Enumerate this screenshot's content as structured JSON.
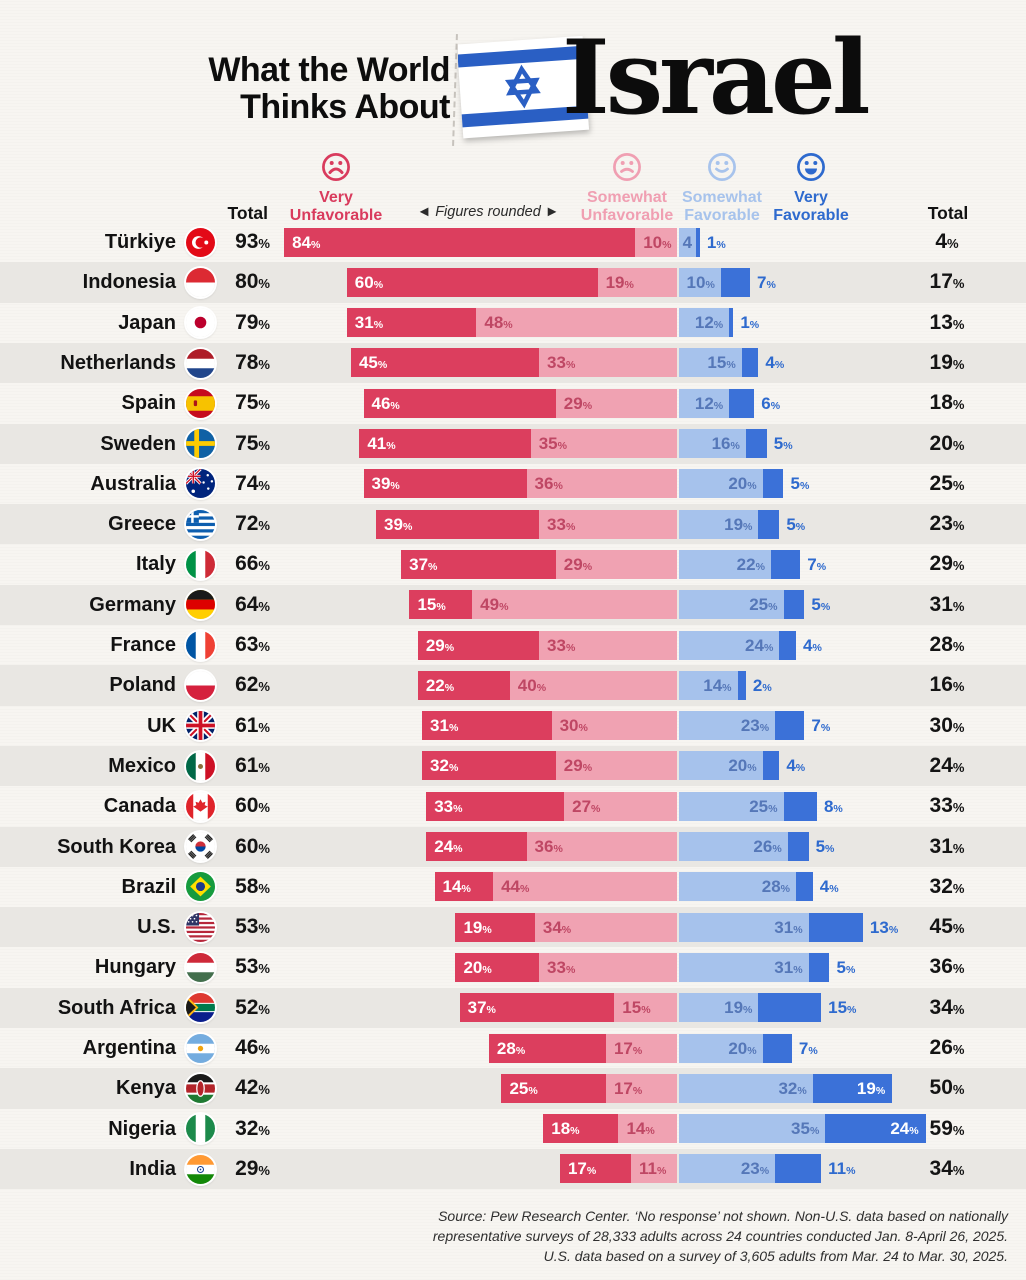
{
  "header": {
    "title_line1": "What the World",
    "title_line2": "Thinks About",
    "title_emphasis": "Israel",
    "flag_icon": "israel-flag-icon"
  },
  "legend": {
    "very_unfavorable": {
      "line1": "Very",
      "line2": "Unfavorable",
      "color": "#d93b5d"
    },
    "somewhat_unfavorable": {
      "line1": "Somewhat",
      "line2": "Unfavorable",
      "color": "#f09fb2"
    },
    "somewhat_favorable": {
      "line1": "Somewhat",
      "line2": "Favorable",
      "color": "#a7c3ec"
    },
    "very_favorable": {
      "line1": "Very",
      "line2": "Favorable",
      "color": "#2e6ace"
    },
    "note": "◄  Figures rounded  ►",
    "total_label_left": "Total",
    "total_label_right": "Total"
  },
  "chart_data": {
    "type": "bar",
    "subtype": "diverging-stacked-horizontal",
    "title": "What the World Thinks About Israel",
    "unit": "%",
    "series": [
      "Very Unfavorable",
      "Somewhat Unfavorable",
      "Somewhat Favorable",
      "Very Favorable"
    ],
    "colors": {
      "very_unfavorable": "#dc3e5e",
      "somewhat_unfavorable": "#f0a2b2",
      "somewhat_favorable": "#a6c2ec",
      "very_favorable": "#3b71d8",
      "su_label": "#bf4764",
      "sf_label": "#5577b8",
      "vf_outside_label": "#2e6ace"
    },
    "rows": [
      {
        "country": "Türkiye",
        "flag": "tr",
        "total_unfavorable": 93,
        "very_unfavorable": 84,
        "somewhat_unfavorable": 10,
        "somewhat_favorable": 4,
        "very_favorable": 1,
        "total_favorable": 4,
        "somewhat_favorable_display": "4"
      },
      {
        "country": "Indonesia",
        "flag": "id",
        "total_unfavorable": 80,
        "very_unfavorable": 60,
        "somewhat_unfavorable": 19,
        "somewhat_favorable": 10,
        "very_favorable": 7,
        "total_favorable": 17
      },
      {
        "country": "Japan",
        "flag": "jp",
        "total_unfavorable": 79,
        "very_unfavorable": 31,
        "somewhat_unfavorable": 48,
        "somewhat_favorable": 12,
        "very_favorable": 1,
        "total_favorable": 13
      },
      {
        "country": "Netherlands",
        "flag": "nl",
        "total_unfavorable": 78,
        "very_unfavorable": 45,
        "somewhat_unfavorable": 33,
        "somewhat_favorable": 15,
        "very_favorable": 4,
        "total_favorable": 19
      },
      {
        "country": "Spain",
        "flag": "es",
        "total_unfavorable": 75,
        "very_unfavorable": 46,
        "somewhat_unfavorable": 29,
        "somewhat_favorable": 12,
        "very_favorable": 6,
        "total_favorable": 18
      },
      {
        "country": "Sweden",
        "flag": "se",
        "total_unfavorable": 75,
        "very_unfavorable": 41,
        "somewhat_unfavorable": 35,
        "somewhat_favorable": 16,
        "very_favorable": 5,
        "total_favorable": 20
      },
      {
        "country": "Australia",
        "flag": "au",
        "total_unfavorable": 74,
        "very_unfavorable": 39,
        "somewhat_unfavorable": 36,
        "somewhat_favorable": 20,
        "very_favorable": 5,
        "total_favorable": 25
      },
      {
        "country": "Greece",
        "flag": "gr",
        "total_unfavorable": 72,
        "very_unfavorable": 39,
        "somewhat_unfavorable": 33,
        "somewhat_favorable": 19,
        "very_favorable": 5,
        "total_favorable": 23
      },
      {
        "country": "Italy",
        "flag": "it",
        "total_unfavorable": 66,
        "very_unfavorable": 37,
        "somewhat_unfavorable": 29,
        "somewhat_favorable": 22,
        "very_favorable": 7,
        "total_favorable": 29
      },
      {
        "country": "Germany",
        "flag": "de",
        "total_unfavorable": 64,
        "very_unfavorable": 15,
        "somewhat_unfavorable": 49,
        "somewhat_favorable": 25,
        "very_favorable": 5,
        "total_favorable": 31
      },
      {
        "country": "France",
        "flag": "fr",
        "total_unfavorable": 63,
        "very_unfavorable": 29,
        "somewhat_unfavorable": 33,
        "somewhat_favorable": 24,
        "very_favorable": 4,
        "total_favorable": 28
      },
      {
        "country": "Poland",
        "flag": "pl",
        "total_unfavorable": 62,
        "very_unfavorable": 22,
        "somewhat_unfavorable": 40,
        "somewhat_favorable": 14,
        "very_favorable": 2,
        "total_favorable": 16
      },
      {
        "country": "UK",
        "flag": "uk",
        "total_unfavorable": 61,
        "very_unfavorable": 31,
        "somewhat_unfavorable": 30,
        "somewhat_favorable": 23,
        "very_favorable": 7,
        "total_favorable": 30
      },
      {
        "country": "Mexico",
        "flag": "mx",
        "total_unfavorable": 61,
        "very_unfavorable": 32,
        "somewhat_unfavorable": 29,
        "somewhat_favorable": 20,
        "very_favorable": 4,
        "total_favorable": 24
      },
      {
        "country": "Canada",
        "flag": "ca",
        "total_unfavorable": 60,
        "very_unfavorable": 33,
        "somewhat_unfavorable": 27,
        "somewhat_favorable": 25,
        "very_favorable": 8,
        "total_favorable": 33
      },
      {
        "country": "South Korea",
        "flag": "kr",
        "total_unfavorable": 60,
        "very_unfavorable": 24,
        "somewhat_unfavorable": 36,
        "somewhat_favorable": 26,
        "very_favorable": 5,
        "total_favorable": 31
      },
      {
        "country": "Brazil",
        "flag": "br",
        "total_unfavorable": 58,
        "very_unfavorable": 14,
        "somewhat_unfavorable": 44,
        "somewhat_favorable": 28,
        "very_favorable": 4,
        "total_favorable": 32
      },
      {
        "country": "U.S.",
        "flag": "us",
        "total_unfavorable": 53,
        "very_unfavorable": 19,
        "somewhat_unfavorable": 34,
        "somewhat_favorable": 31,
        "very_favorable": 13,
        "total_favorable": 45
      },
      {
        "country": "Hungary",
        "flag": "hu",
        "total_unfavorable": 53,
        "very_unfavorable": 20,
        "somewhat_unfavorable": 33,
        "somewhat_favorable": 31,
        "very_favorable": 5,
        "total_favorable": 36
      },
      {
        "country": "South Africa",
        "flag": "za",
        "total_unfavorable": 52,
        "very_unfavorable": 37,
        "somewhat_unfavorable": 15,
        "somewhat_favorable": 19,
        "very_favorable": 15,
        "total_favorable": 34
      },
      {
        "country": "Argentina",
        "flag": "ar",
        "total_unfavorable": 46,
        "very_unfavorable": 28,
        "somewhat_unfavorable": 17,
        "somewhat_favorable": 20,
        "very_favorable": 7,
        "total_favorable": 26
      },
      {
        "country": "Kenya",
        "flag": "ke",
        "total_unfavorable": 42,
        "very_unfavorable": 25,
        "somewhat_unfavorable": 17,
        "somewhat_favorable": 32,
        "very_favorable": 19,
        "total_favorable": 50
      },
      {
        "country": "Nigeria",
        "flag": "ng",
        "total_unfavorable": 32,
        "very_unfavorable": 18,
        "somewhat_unfavorable": 14,
        "somewhat_favorable": 35,
        "very_favorable": 24,
        "total_favorable": 59
      },
      {
        "country": "India",
        "flag": "in",
        "total_unfavorable": 29,
        "very_unfavorable": 17,
        "somewhat_unfavorable": 11,
        "somewhat_favorable": 23,
        "very_favorable": 11,
        "total_favorable": 34
      }
    ]
  },
  "footer": {
    "lines": [
      "Source: Pew Research Center. ‘No response’ not shown. Non-U.S. data based on nationally",
      "representative surveys of 28,333 adults across 24 countries conducted Jan. 8-April 26, 2025.",
      "U.S. data based on a survey of 3,605 adults from Mar. 24 to Mar. 30, 2025."
    ]
  }
}
